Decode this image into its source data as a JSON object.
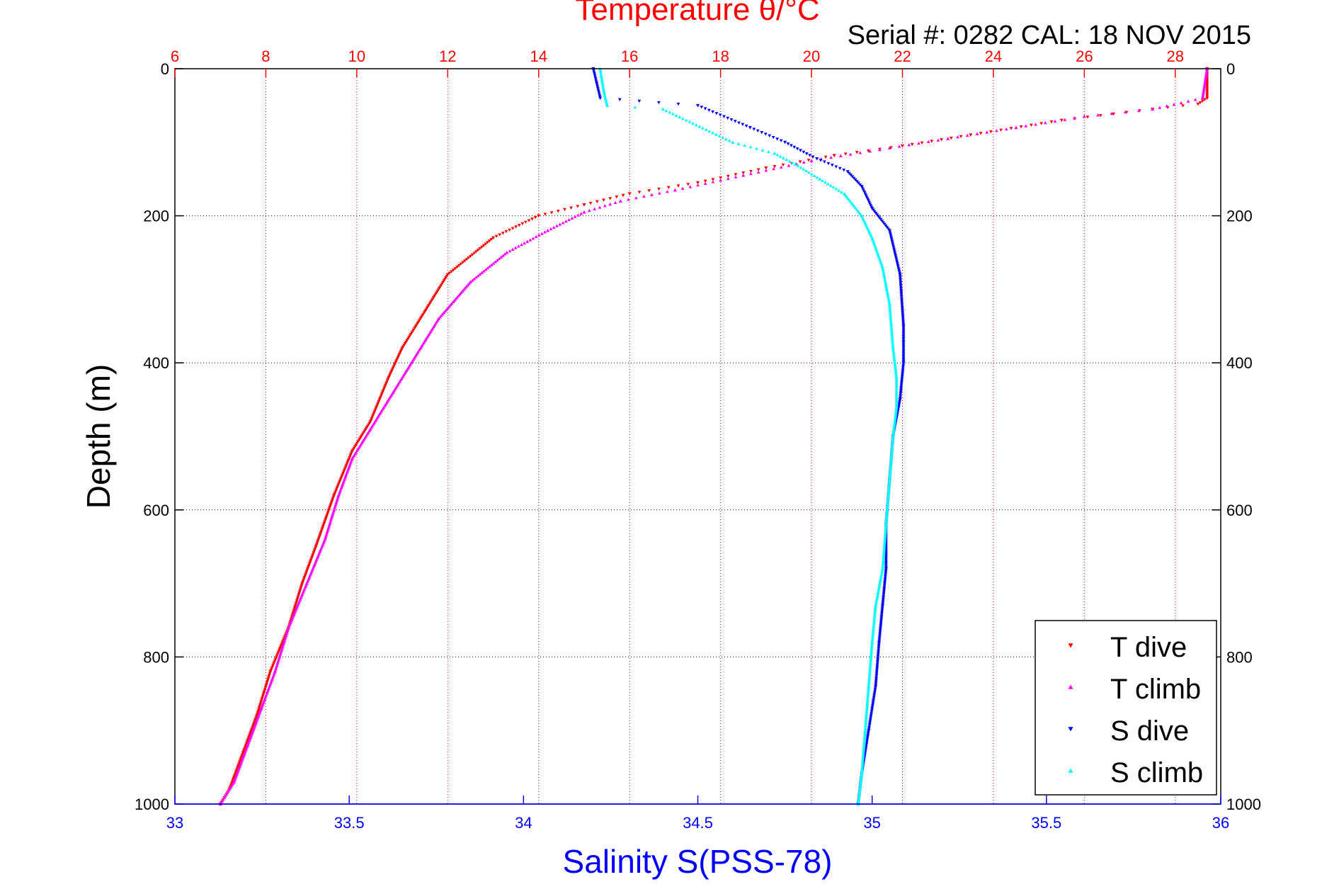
{
  "chart_data": {
    "type": "scatter",
    "title": "Temperature θ/°C",
    "subtitle": "Serial #: 0282  CAL: 18 NOV 2015",
    "ylabel": "Depth (m)",
    "xlabel_bottom": "Salinity S(PSS-78)",
    "ylim": [
      0,
      1000
    ],
    "y_reversed": true,
    "y_ticks": [
      0,
      200,
      400,
      600,
      800,
      1000
    ],
    "x_top": {
      "label": "Temperature θ/°C",
      "range": [
        6,
        29
      ],
      "ticks": [
        6,
        8,
        10,
        12,
        14,
        16,
        18,
        20,
        22,
        24,
        26,
        28
      ]
    },
    "x_bottom": {
      "label": "Salinity S(PSS-78)",
      "range": [
        33,
        36
      ],
      "ticks": [
        33,
        33.5,
        34,
        34.5,
        35,
        35.5,
        36
      ]
    },
    "grid": true,
    "legend_position": "bottom-right",
    "colors": {
      "temperature_axis": "#ff0000",
      "salinity_axis": "#0000ff"
    },
    "series": [
      {
        "name": "T dive",
        "axis": "temperature",
        "marker": "triangle-down",
        "color": "#ff0000",
        "points": [
          [
            28.7,
            0
          ],
          [
            28.7,
            20
          ],
          [
            28.7,
            40
          ],
          [
            28.5,
            48
          ],
          [
            27.5,
            55
          ],
          [
            25.5,
            70
          ],
          [
            23.5,
            90
          ],
          [
            22.0,
            105
          ],
          [
            20.5,
            118
          ],
          [
            19.0,
            135
          ],
          [
            17.5,
            155
          ],
          [
            16.0,
            170
          ],
          [
            15.0,
            185
          ],
          [
            14.0,
            200
          ],
          [
            13.0,
            230
          ],
          [
            12.0,
            280
          ],
          [
            11.5,
            330
          ],
          [
            11.0,
            380
          ],
          [
            10.7,
            420
          ],
          [
            10.3,
            480
          ],
          [
            9.9,
            520
          ],
          [
            9.5,
            580
          ],
          [
            9.1,
            650
          ],
          [
            8.8,
            700
          ],
          [
            8.5,
            760
          ],
          [
            8.1,
            820
          ],
          [
            7.8,
            880
          ],
          [
            7.5,
            930
          ],
          [
            7.2,
            980
          ],
          [
            7.0,
            1000
          ]
        ]
      },
      {
        "name": "T climb",
        "axis": "temperature",
        "marker": "triangle-up",
        "color": "#ff00ff",
        "points": [
          [
            28.7,
            0
          ],
          [
            28.6,
            40
          ],
          [
            27.5,
            55
          ],
          [
            26.0,
            65
          ],
          [
            24.5,
            80
          ],
          [
            23.0,
            95
          ],
          [
            21.5,
            110
          ],
          [
            20.0,
            125
          ],
          [
            18.5,
            145
          ],
          [
            17.0,
            165
          ],
          [
            15.8,
            180
          ],
          [
            15.0,
            195
          ],
          [
            14.2,
            220
          ],
          [
            13.3,
            250
          ],
          [
            12.5,
            290
          ],
          [
            11.8,
            340
          ],
          [
            11.2,
            400
          ],
          [
            10.8,
            440
          ],
          [
            10.3,
            490
          ],
          [
            9.9,
            530
          ],
          [
            9.6,
            580
          ],
          [
            9.3,
            640
          ],
          [
            8.9,
            700
          ],
          [
            8.5,
            760
          ],
          [
            8.2,
            820
          ],
          [
            7.9,
            870
          ],
          [
            7.6,
            920
          ],
          [
            7.3,
            970
          ],
          [
            7.0,
            1000
          ]
        ]
      },
      {
        "name": "S dive",
        "axis": "salinity",
        "marker": "triangle-down",
        "color": "#0000ff",
        "points": [
          [
            34.2,
            0
          ],
          [
            34.21,
            20
          ],
          [
            34.22,
            40
          ],
          [
            34.5,
            50
          ],
          [
            34.65,
            80
          ],
          [
            34.75,
            100
          ],
          [
            34.83,
            120
          ],
          [
            34.93,
            140
          ],
          [
            34.97,
            160
          ],
          [
            35.0,
            190
          ],
          [
            35.05,
            220
          ],
          [
            35.08,
            280
          ],
          [
            35.09,
            350
          ],
          [
            35.09,
            400
          ],
          [
            35.08,
            450
          ],
          [
            35.06,
            500
          ],
          [
            35.05,
            560
          ],
          [
            35.04,
            620
          ],
          [
            35.04,
            680
          ],
          [
            35.03,
            730
          ],
          [
            35.02,
            780
          ],
          [
            35.01,
            840
          ],
          [
            34.99,
            900
          ],
          [
            34.97,
            960
          ],
          [
            34.96,
            1000
          ]
        ]
      },
      {
        "name": "S climb",
        "axis": "salinity",
        "marker": "triangle-up",
        "color": "#00ffff",
        "points": [
          [
            34.22,
            0
          ],
          [
            34.23,
            30
          ],
          [
            34.24,
            50
          ],
          [
            34.4,
            55
          ],
          [
            34.6,
            100
          ],
          [
            34.72,
            115
          ],
          [
            34.78,
            130
          ],
          [
            34.85,
            150
          ],
          [
            34.92,
            170
          ],
          [
            34.97,
            200
          ],
          [
            35.0,
            230
          ],
          [
            35.03,
            270
          ],
          [
            35.05,
            320
          ],
          [
            35.06,
            380
          ],
          [
            35.07,
            420
          ],
          [
            35.07,
            460
          ],
          [
            35.06,
            500
          ],
          [
            35.05,
            560
          ],
          [
            35.04,
            620
          ],
          [
            35.03,
            680
          ],
          [
            35.01,
            730
          ],
          [
            35.0,
            780
          ],
          [
            34.99,
            840
          ],
          [
            34.98,
            900
          ],
          [
            34.97,
            960
          ],
          [
            34.96,
            1000
          ]
        ]
      }
    ]
  }
}
